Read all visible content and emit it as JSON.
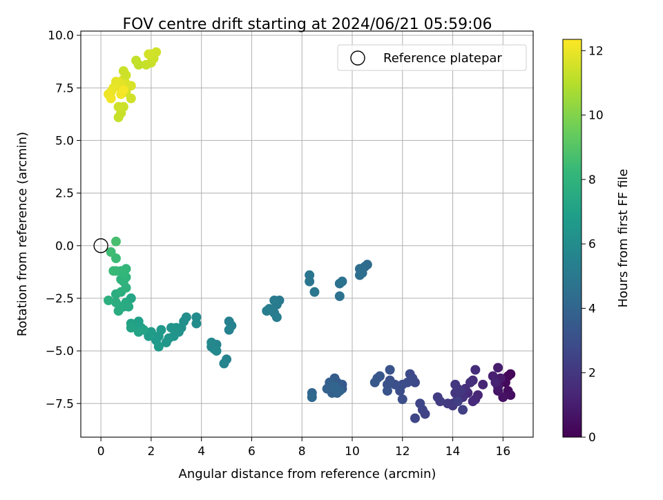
{
  "chart_data": {
    "type": "scatter",
    "title": "FOV centre drift starting at 2024/06/21 05:59:06",
    "xlabel": "Angular distance from reference (arcmin)",
    "ylabel": "Rotation from reference (arcmin)",
    "xlim": [
      -0.8,
      17.2
    ],
    "ylim": [
      -9.1,
      10.2
    ],
    "xticks": [
      0,
      2,
      4,
      6,
      8,
      10,
      12,
      14,
      16
    ],
    "xtick_labels": [
      "0",
      "2",
      "4",
      "6",
      "8",
      "10",
      "12",
      "14",
      "16"
    ],
    "yticks": [
      -7.5,
      -5.0,
      -2.5,
      0.0,
      2.5,
      5.0,
      7.5,
      10.0
    ],
    "ytick_labels": [
      "−7.5",
      "−5.0",
      "−2.5",
      "0.0",
      "2.5",
      "5.0",
      "7.5",
      "10.0"
    ],
    "grid": true,
    "legend": {
      "placement": "top-right",
      "entries": [
        "Reference platepar"
      ]
    },
    "reference_point": {
      "name": "Reference platepar",
      "x": 0,
      "y": 0,
      "marker": "open-circle"
    },
    "colorbar": {
      "label": "Hours from first FF file",
      "colormap": "viridis",
      "range": [
        0,
        12.35
      ],
      "ticks": [
        0,
        2,
        4,
        6,
        8,
        10,
        12
      ],
      "tick_labels": [
        "0",
        "2",
        "4",
        "6",
        "8",
        "10",
        "12"
      ]
    },
    "colormap_stops": [
      "#440154",
      "#482878",
      "#3e4989",
      "#31688e",
      "#26828e",
      "#1f9e89",
      "#35b779",
      "#6ece58",
      "#b5de2b",
      "#fde725"
    ],
    "series": {
      "columns": [
        "x",
        "y",
        "hours"
      ],
      "points": [
        [
          16.3,
          -6.1,
          0.1
        ],
        [
          16.2,
          -6.2,
          0.2
        ],
        [
          16.1,
          -6.5,
          0.3
        ],
        [
          16.2,
          -6.9,
          0.4
        ],
        [
          16.3,
          -7.1,
          0.5
        ],
        [
          16.0,
          -7.2,
          0.6
        ],
        [
          15.8,
          -6.9,
          0.7
        ],
        [
          15.8,
          -6.7,
          0.8
        ],
        [
          15.9,
          -6.3,
          0.9
        ],
        [
          15.8,
          -5.8,
          1.0
        ],
        [
          15.6,
          -6.2,
          1.1
        ],
        [
          15.7,
          -6.5,
          1.2
        ],
        [
          15.2,
          -6.6,
          1.3
        ],
        [
          15.0,
          -7.1,
          1.35
        ],
        [
          14.9,
          -7.3,
          1.4
        ],
        [
          14.8,
          -7.4,
          1.45
        ],
        [
          14.6,
          -7.0,
          1.5
        ],
        [
          14.8,
          -6.4,
          1.55
        ],
        [
          14.9,
          -5.9,
          1.6
        ],
        [
          14.7,
          -6.5,
          1.65
        ],
        [
          14.5,
          -6.8,
          1.7
        ],
        [
          14.4,
          -7.2,
          1.75
        ],
        [
          14.2,
          -7.3,
          1.8
        ],
        [
          14.0,
          -7.5,
          1.85
        ],
        [
          14.1,
          -7.0,
          1.9
        ],
        [
          14.2,
          -6.8,
          1.95
        ],
        [
          14.3,
          -6.9,
          2.0
        ],
        [
          14.1,
          -6.6,
          2.05
        ],
        [
          14.0,
          -7.6,
          2.1
        ],
        [
          13.8,
          -7.5,
          2.15
        ],
        [
          13.5,
          -7.4,
          2.2
        ],
        [
          13.4,
          -7.2,
          2.25
        ],
        [
          14.2,
          -7.4,
          2.3
        ],
        [
          14.4,
          -7.8,
          2.35
        ],
        [
          12.9,
          -8.0,
          2.5
        ],
        [
          12.8,
          -7.8,
          2.55
        ],
        [
          12.7,
          -7.5,
          2.6
        ],
        [
          12.5,
          -8.2,
          2.65
        ],
        [
          12.5,
          -6.5,
          2.7
        ],
        [
          12.3,
          -6.1,
          2.75
        ],
        [
          12.4,
          -6.3,
          2.8
        ],
        [
          12.2,
          -6.5,
          2.85
        ],
        [
          12.0,
          -6.6,
          2.9
        ],
        [
          11.9,
          -6.9,
          2.95
        ],
        [
          12.0,
          -7.3,
          3.0
        ],
        [
          11.7,
          -6.6,
          3.05
        ],
        [
          11.5,
          -6.4,
          3.1
        ],
        [
          11.4,
          -6.6,
          3.15
        ],
        [
          11.5,
          -5.9,
          3.2
        ],
        [
          11.4,
          -6.9,
          3.25
        ],
        [
          11.1,
          -6.2,
          3.3
        ],
        [
          11.0,
          -6.3,
          3.35
        ],
        [
          10.9,
          -6.5,
          3.4
        ],
        [
          9.6,
          -6.6,
          3.5
        ],
        [
          9.6,
          -6.8,
          3.55
        ],
        [
          9.4,
          -6.5,
          3.6
        ],
        [
          9.3,
          -6.3,
          3.65
        ],
        [
          9.2,
          -6.6,
          3.7
        ],
        [
          9.1,
          -6.5,
          3.75
        ],
        [
          9.0,
          -6.8,
          3.8
        ],
        [
          9.2,
          -7.0,
          3.85
        ],
        [
          9.4,
          -7.0,
          3.9
        ],
        [
          9.5,
          -6.9,
          3.95
        ],
        [
          9.3,
          -6.7,
          4.0
        ],
        [
          8.4,
          -7.0,
          4.05
        ],
        [
          8.4,
          -7.2,
          4.1
        ],
        [
          10.6,
          -0.9,
          4.3
        ],
        [
          10.5,
          -1.0,
          4.35
        ],
        [
          10.3,
          -1.1,
          4.4
        ],
        [
          10.4,
          -1.3,
          4.45
        ],
        [
          10.3,
          -1.4,
          4.5
        ],
        [
          9.5,
          -1.8,
          4.6
        ],
        [
          9.5,
          -2.4,
          4.65
        ],
        [
          9.6,
          -1.7,
          4.7
        ],
        [
          8.3,
          -1.4,
          4.8
        ],
        [
          8.3,
          -1.7,
          4.85
        ],
        [
          8.5,
          -2.2,
          4.9
        ],
        [
          7.1,
          -2.6,
          5.0
        ],
        [
          7.0,
          -2.8,
          5.05
        ],
        [
          6.9,
          -2.6,
          5.1
        ],
        [
          6.9,
          -3.2,
          5.15
        ],
        [
          7.0,
          -3.4,
          5.2
        ],
        [
          6.7,
          -3.0,
          5.25
        ],
        [
          6.6,
          -3.1,
          5.3
        ],
        [
          5.1,
          -3.6,
          5.4
        ],
        [
          5.2,
          -3.8,
          5.45
        ],
        [
          5.1,
          -4.0,
          5.5
        ],
        [
          5.0,
          -5.4,
          5.55
        ],
        [
          4.9,
          -5.6,
          5.6
        ],
        [
          4.6,
          -4.7,
          5.65
        ],
        [
          4.5,
          -4.9,
          5.7
        ],
        [
          4.4,
          -4.8,
          5.75
        ],
        [
          4.4,
          -4.6,
          5.8
        ],
        [
          4.6,
          -5.0,
          5.85
        ],
        [
          3.8,
          -3.4,
          6.0
        ],
        [
          3.8,
          -3.7,
          6.05
        ],
        [
          3.4,
          -3.4,
          6.1
        ],
        [
          3.3,
          -3.6,
          6.15
        ],
        [
          3.2,
          -3.9,
          6.2
        ],
        [
          3.1,
          -4.1,
          6.25
        ],
        [
          3.0,
          -3.9,
          6.3
        ],
        [
          2.8,
          -3.9,
          6.35
        ],
        [
          2.9,
          -4.3,
          6.4
        ],
        [
          2.7,
          -4.4,
          6.45
        ],
        [
          2.6,
          -4.6,
          6.5
        ],
        [
          2.4,
          -4.0,
          6.55
        ],
        [
          2.3,
          -4.3,
          6.6
        ],
        [
          2.2,
          -4.5,
          6.65
        ],
        [
          2.3,
          -4.8,
          6.7
        ],
        [
          2.0,
          -4.1,
          6.75
        ],
        [
          1.9,
          -4.3,
          6.8
        ],
        [
          1.6,
          -3.9,
          6.9
        ],
        [
          1.5,
          -3.6,
          6.95
        ],
        [
          1.4,
          -3.8,
          7.0
        ],
        [
          1.2,
          -3.7,
          7.05
        ],
        [
          1.7,
          -4.0,
          7.1
        ],
        [
          1.5,
          -4.1,
          7.15
        ],
        [
          1.2,
          -3.9,
          7.2
        ],
        [
          1.2,
          -2.5,
          7.3
        ],
        [
          1.0,
          -2.7,
          7.35
        ],
        [
          1.1,
          -2.9,
          7.4
        ],
        [
          0.9,
          -2.9,
          7.45
        ],
        [
          1.0,
          -2.8,
          7.5
        ],
        [
          0.8,
          -2.9,
          7.55
        ],
        [
          0.7,
          -3.1,
          7.6
        ],
        [
          0.6,
          -2.7,
          7.65
        ],
        [
          0.6,
          -2.3,
          7.7
        ],
        [
          0.8,
          -2.2,
          7.75
        ],
        [
          0.3,
          -2.6,
          7.8
        ],
        [
          1.0,
          -2.0,
          7.85
        ],
        [
          0.9,
          -1.7,
          7.9
        ],
        [
          0.8,
          -1.6,
          7.95
        ],
        [
          1.0,
          -1.5,
          8.0
        ],
        [
          0.9,
          -1.3,
          8.1
        ],
        [
          1.0,
          -1.1,
          8.15
        ],
        [
          0.8,
          -1.2,
          8.2
        ],
        [
          0.6,
          -1.2,
          8.25
        ],
        [
          0.5,
          -1.2,
          8.3
        ],
        [
          0.6,
          -0.6,
          8.4
        ],
        [
          0.4,
          -0.3,
          8.5
        ],
        [
          0.6,
          0.2,
          8.7
        ],
        [
          0.7,
          6.1,
          11.3
        ],
        [
          0.8,
          6.3,
          11.35
        ],
        [
          0.9,
          6.6,
          11.4
        ],
        [
          0.7,
          6.6,
          11.45
        ],
        [
          1.2,
          7.0,
          11.5
        ],
        [
          1.0,
          7.3,
          11.55
        ],
        [
          1.1,
          7.6,
          11.6
        ],
        [
          1.2,
          7.6,
          11.65
        ],
        [
          1.0,
          7.7,
          11.7
        ],
        [
          0.9,
          7.9,
          11.75
        ],
        [
          0.8,
          7.8,
          11.8
        ],
        [
          0.7,
          7.6,
          11.85
        ],
        [
          0.6,
          7.8,
          11.9
        ],
        [
          0.5,
          7.5,
          11.95
        ],
        [
          0.4,
          7.3,
          12.0
        ],
        [
          0.3,
          7.2,
          12.05
        ],
        [
          0.4,
          7.0,
          12.1
        ],
        [
          0.8,
          7.2,
          12.15
        ],
        [
          0.9,
          7.4,
          12.2
        ],
        [
          0.9,
          8.3,
          11.4
        ],
        [
          1.0,
          8.1,
          11.45
        ],
        [
          1.5,
          8.6,
          11.2
        ],
        [
          1.4,
          8.8,
          11.25
        ],
        [
          1.8,
          8.6,
          11.3
        ],
        [
          2.0,
          8.7,
          11.35
        ],
        [
          2.1,
          8.9,
          11.4
        ],
        [
          2.0,
          9.1,
          11.45
        ],
        [
          2.2,
          9.2,
          11.5
        ],
        [
          1.9,
          9.1,
          11.55
        ]
      ]
    }
  }
}
